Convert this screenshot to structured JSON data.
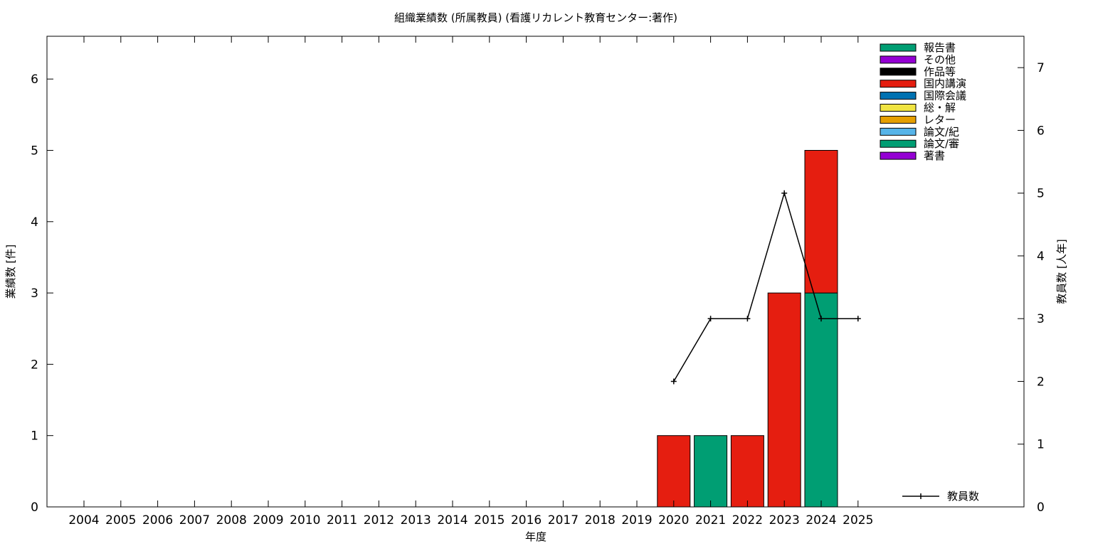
{
  "chart_data": {
    "type": "bar",
    "title": "組織業績数 (所属教員) (看護リカレント教育センター:著作)",
    "xlabel": "年度",
    "ylabel": "業績数 [件]",
    "y2label": "教員数 [人年]",
    "categories": [
      "2004",
      "2005",
      "2006",
      "2007",
      "2008",
      "2009",
      "2010",
      "2011",
      "2012",
      "2013",
      "2014",
      "2015",
      "2016",
      "2017",
      "2018",
      "2019",
      "2020",
      "2021",
      "2022",
      "2023",
      "2024",
      "2025"
    ],
    "ylim": [
      0,
      6.6
    ],
    "yticks": [
      0,
      1,
      2,
      3,
      4,
      5,
      6
    ],
    "y2lim": [
      0,
      7.5
    ],
    "y2ticks": [
      0,
      1,
      2,
      3,
      4,
      5,
      6,
      7
    ],
    "stacked": true,
    "series": [
      {
        "name": "著書",
        "color": "#9400d3",
        "values": [
          0,
          0,
          0,
          0,
          0,
          0,
          0,
          0,
          0,
          0,
          0,
          0,
          0,
          0,
          0,
          0,
          0,
          0,
          0,
          0,
          0,
          0
        ]
      },
      {
        "name": "論文/審",
        "color": "#009e73",
        "values": [
          0,
          0,
          0,
          0,
          0,
          0,
          0,
          0,
          0,
          0,
          0,
          0,
          0,
          0,
          0,
          0,
          0,
          1,
          0,
          0,
          3,
          0
        ]
      },
      {
        "name": "論文/紀",
        "color": "#56b4e9",
        "values": [
          0,
          0,
          0,
          0,
          0,
          0,
          0,
          0,
          0,
          0,
          0,
          0,
          0,
          0,
          0,
          0,
          0,
          0,
          0,
          0,
          0,
          0
        ]
      },
      {
        "name": "レター",
        "color": "#e69f00",
        "values": [
          0,
          0,
          0,
          0,
          0,
          0,
          0,
          0,
          0,
          0,
          0,
          0,
          0,
          0,
          0,
          0,
          0,
          0,
          0,
          0,
          0,
          0
        ]
      },
      {
        "name": "総・解",
        "color": "#f0e442",
        "values": [
          0,
          0,
          0,
          0,
          0,
          0,
          0,
          0,
          0,
          0,
          0,
          0,
          0,
          0,
          0,
          0,
          0,
          0,
          0,
          0,
          0,
          0
        ]
      },
      {
        "name": "国際会議",
        "color": "#0072b2",
        "values": [
          0,
          0,
          0,
          0,
          0,
          0,
          0,
          0,
          0,
          0,
          0,
          0,
          0,
          0,
          0,
          0,
          0,
          0,
          0,
          0,
          0,
          0
        ]
      },
      {
        "name": "国内講演",
        "color": "#e51e10",
        "values": [
          0,
          0,
          0,
          0,
          0,
          0,
          0,
          0,
          0,
          0,
          0,
          0,
          0,
          0,
          0,
          0,
          1,
          0,
          1,
          3,
          2,
          0
        ]
      },
      {
        "name": "作品等",
        "color": "#000000",
        "values": [
          0,
          0,
          0,
          0,
          0,
          0,
          0,
          0,
          0,
          0,
          0,
          0,
          0,
          0,
          0,
          0,
          0,
          0,
          0,
          0,
          0,
          0
        ]
      },
      {
        "name": "その他",
        "color": "#9400d3",
        "values": [
          0,
          0,
          0,
          0,
          0,
          0,
          0,
          0,
          0,
          0,
          0,
          0,
          0,
          0,
          0,
          0,
          0,
          0,
          0,
          0,
          0,
          0
        ]
      },
      {
        "name": "報告書",
        "color": "#009e73",
        "values": [
          0,
          0,
          0,
          0,
          0,
          0,
          0,
          0,
          0,
          0,
          0,
          0,
          0,
          0,
          0,
          0,
          0,
          0,
          0,
          0,
          0,
          0
        ]
      }
    ],
    "line_series": {
      "name": "教員数",
      "axis": "y2",
      "color": "#000000",
      "x": [
        "2020",
        "2021",
        "2022",
        "2023",
        "2024",
        "2025"
      ],
      "values": [
        2,
        3,
        3,
        5,
        3,
        3
      ]
    },
    "legend_position": "top-right",
    "grid": false
  }
}
